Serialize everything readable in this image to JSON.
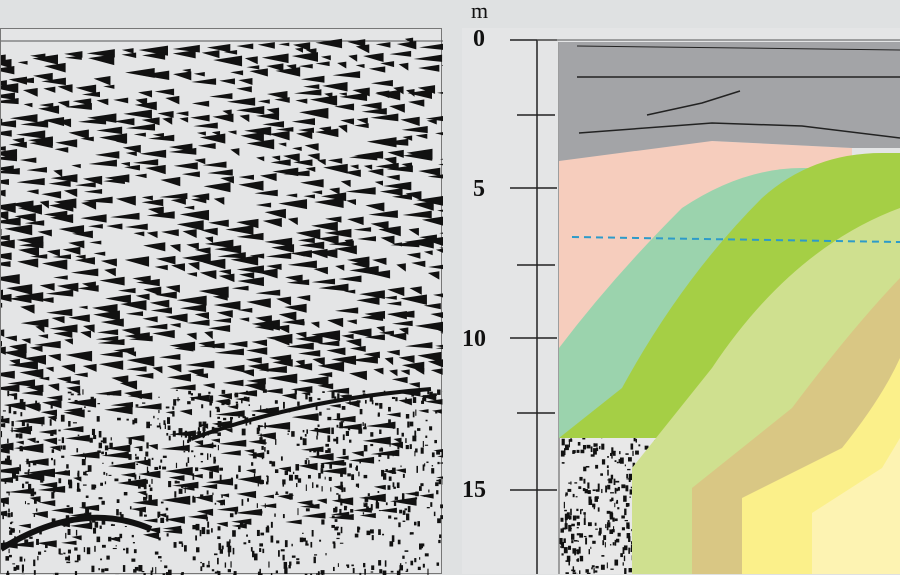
{
  "depth_axis": {
    "unit": "m",
    "labels": [
      "0",
      "5",
      "10",
      "15"
    ]
  },
  "colors": {
    "background": "#dfe1e2",
    "overburden": "#a3a4a7",
    "pink_layer": "#f6cdbd",
    "teal_layer": "#9bd3ad",
    "green_layer": "#a5cf45",
    "light_green_layer": "#cfe08f",
    "tan_layer": "#d9c784",
    "yellow_layer": "#fbf08a",
    "pale_yellow_layer": "#fdf3b2",
    "water_table": "#2d9bc9",
    "seismic_ink": "#111111"
  },
  "icons": [
    "seismic-section-raw",
    "seismic-section-interpreted"
  ]
}
